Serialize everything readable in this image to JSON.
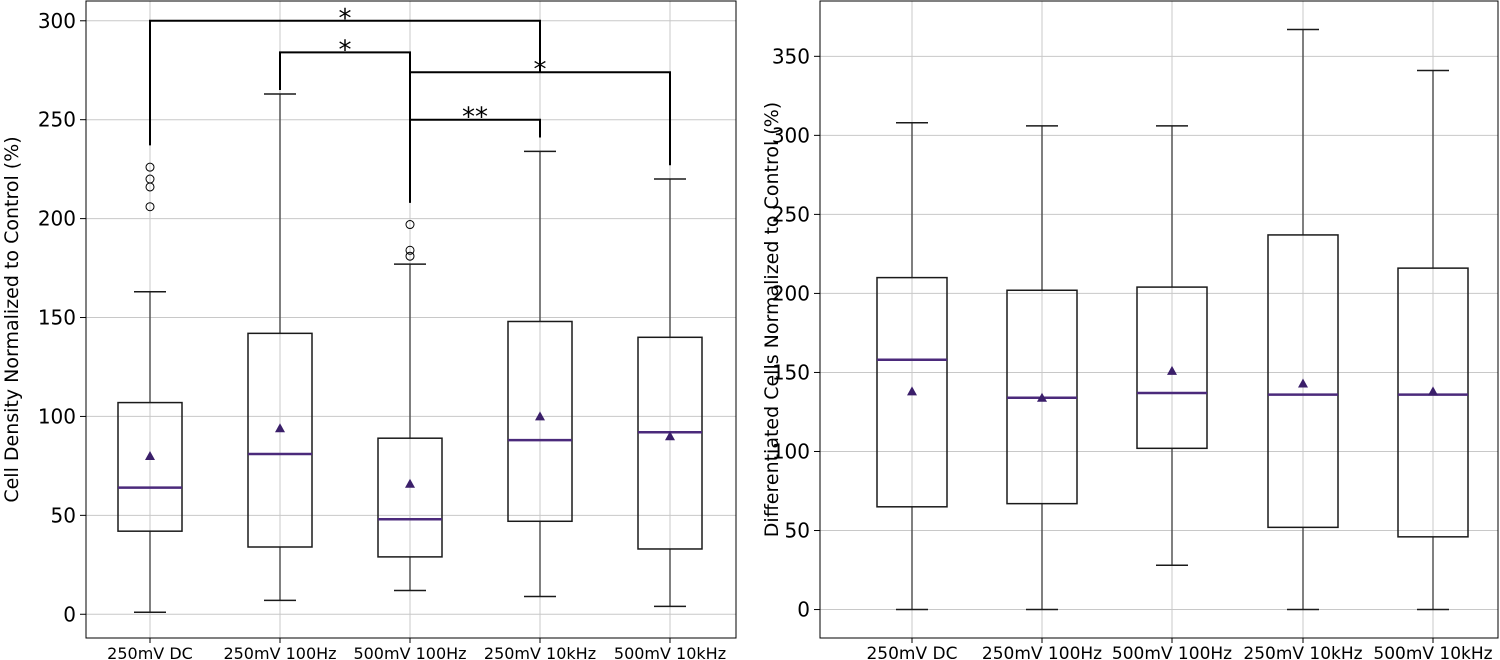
{
  "chart_data": [
    {
      "type": "box",
      "title": "",
      "xlabel": "",
      "ylabel": "Cell Density Normalized to Control (%)",
      "ylim": [
        -12,
        310
      ],
      "yticks": [
        0,
        50,
        100,
        150,
        200,
        250,
        300
      ],
      "grid": true,
      "categories": [
        "250mV DC",
        "250mV 100Hz",
        "500mV 100Hz",
        "250mV 10kHz",
        "500mV 10kHz"
      ],
      "boxes": [
        {
          "whisker_low": 1,
          "q1": 42,
          "median": 64,
          "q3": 107,
          "whisker_high": 163,
          "mean": 80,
          "outliers": [
            206,
            216,
            220,
            226
          ]
        },
        {
          "whisker_low": 7,
          "q1": 34,
          "median": 81,
          "q3": 142,
          "whisker_high": 263,
          "mean": 94,
          "outliers": []
        },
        {
          "whisker_low": 12,
          "q1": 29,
          "median": 48,
          "q3": 89,
          "whisker_high": 177,
          "mean": 66,
          "outliers": [
            181,
            184,
            197
          ]
        },
        {
          "whisker_low": 9,
          "q1": 47,
          "median": 88,
          "q3": 148,
          "whisker_high": 234,
          "mean": 100,
          "outliers": []
        },
        {
          "whisker_low": 4,
          "q1": 33,
          "median": 92,
          "q3": 140,
          "whisker_high": 220,
          "mean": 90,
          "outliers": []
        }
      ],
      "significance": [
        {
          "from": 0,
          "to": 3,
          "label": "*",
          "level": 300,
          "left_end": 237,
          "right_end": 274
        },
        {
          "from": 1,
          "to": 2,
          "label": "*",
          "level": 284,
          "left_end": 265,
          "right_end": 274
        },
        {
          "from": 2,
          "to": 4,
          "label": "*",
          "level": 274,
          "left_end": 208,
          "right_end": 227
        },
        {
          "from": 2,
          "to": 3,
          "label": "**",
          "level": 250,
          "left_end": 208,
          "right_end": 241
        }
      ]
    },
    {
      "type": "box",
      "title": "",
      "xlabel": "",
      "ylabel": "Differentiated Cells Normalized to Control (%)",
      "ylim": [
        -18,
        385
      ],
      "yticks": [
        0,
        50,
        100,
        150,
        200,
        250,
        300,
        350
      ],
      "grid": true,
      "categories": [
        "250mV DC",
        "250mV 100Hz",
        "500mV 100Hz",
        "250mV 10kHz",
        "500mV 10kHz"
      ],
      "boxes": [
        {
          "whisker_low": 0,
          "q1": 65,
          "median": 158,
          "q3": 210,
          "whisker_high": 308,
          "mean": 138,
          "outliers": []
        },
        {
          "whisker_low": 0,
          "q1": 67,
          "median": 134,
          "q3": 202,
          "whisker_high": 306,
          "mean": 134,
          "outliers": []
        },
        {
          "whisker_low": 28,
          "q1": 102,
          "median": 137,
          "q3": 204,
          "whisker_high": 306,
          "mean": 151,
          "outliers": []
        },
        {
          "whisker_low": 0,
          "q1": 52,
          "median": 136,
          "q3": 237,
          "whisker_high": 367,
          "mean": 143,
          "outliers": []
        },
        {
          "whisker_low": 0,
          "q1": 46,
          "median": 136,
          "q3": 216,
          "whisker_high": 341,
          "mean": 138,
          "outliers": []
        }
      ],
      "significance": []
    }
  ],
  "colors": {
    "box": "#1a1a1a",
    "whisker": "#555555",
    "median": "#4b2a7b",
    "mean": "#3b1f6a",
    "grid": "#c8c8c8",
    "bracket": "#000000"
  }
}
